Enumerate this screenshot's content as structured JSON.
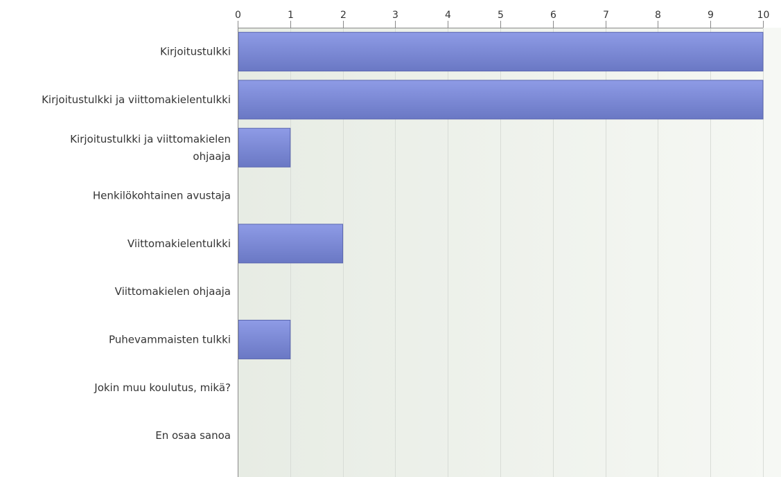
{
  "chart_data": {
    "type": "bar",
    "orientation": "horizontal",
    "categories": [
      [
        "Kirjoitustulkki"
      ],
      [
        "Kirjoitustulkki ja viittomakielentulkki"
      ],
      [
        "Kirjoitustulkki ja viittomakielen",
        "ohjaaja"
      ],
      [
        "Henkilökohtainen avustaja"
      ],
      [
        "Viittomakielentulkki"
      ],
      [
        "Viittomakielen ohjaaja"
      ],
      [
        "Puhevammaisten tulkki"
      ],
      [
        "Jokin muu koulutus, mikä?"
      ],
      [
        "En osaa sanoa"
      ]
    ],
    "values": [
      10,
      10,
      1,
      0,
      2,
      0,
      1,
      0,
      0
    ],
    "ticks": [
      "0",
      "1",
      "2",
      "3",
      "4",
      "5",
      "6",
      "7",
      "8",
      "9",
      "10"
    ],
    "xlim": [
      0,
      10
    ],
    "axis_position": "top",
    "grid": true,
    "colors": {
      "bar_top": "#8e9be6",
      "bar_bottom": "#6a78c4",
      "bar_stroke": "#5a66b0",
      "plot_bg_left": "#e7ece4",
      "plot_bg_right": "#f6f8f4",
      "grid": "#d8dcd6",
      "axis": "#888888"
    }
  }
}
